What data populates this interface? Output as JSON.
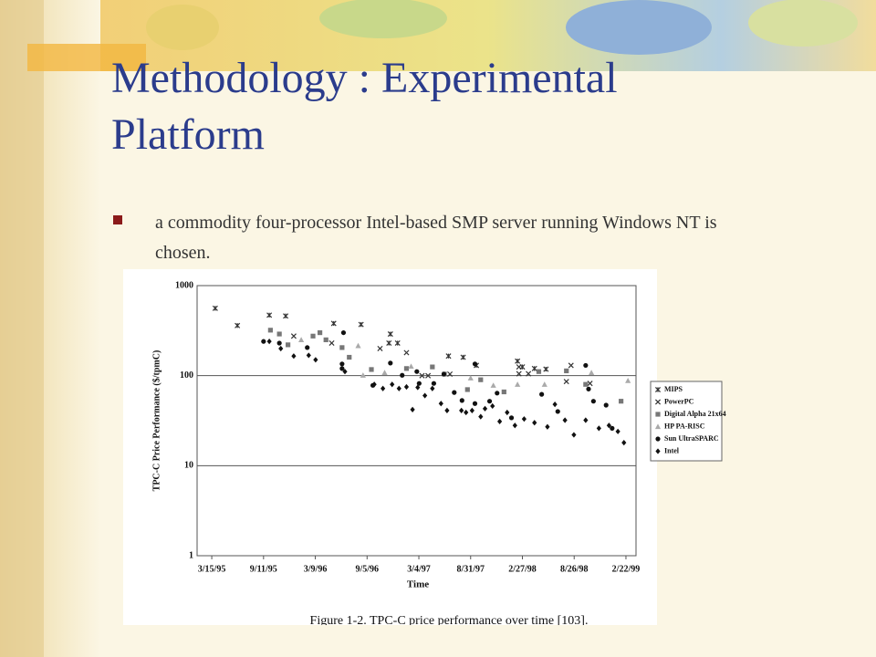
{
  "slide": {
    "title": "Methodology : Experimental Platform",
    "bullet": "a commodity four-processor Intel-based SMP server running Windows NT is chosen."
  },
  "chart_data": {
    "type": "scatter",
    "xlabel": "Time",
    "ylabel": "TPC-C Price Performance ($/tpmC)",
    "caption": "Figure 1-2. TPC-C price performance over time [103].",
    "xlim": [
      "1995-01-23",
      "1999-03-29"
    ],
    "xticks": [
      {
        "value": "1995-03-15",
        "label": "3/15/95"
      },
      {
        "value": "1995-09-11",
        "label": "9/11/95"
      },
      {
        "value": "1996-03-09",
        "label": "3/9/96"
      },
      {
        "value": "1996-09-05",
        "label": "9/5/96"
      },
      {
        "value": "1997-03-04",
        "label": "3/4/97"
      },
      {
        "value": "1997-08-31",
        "label": "8/31/97"
      },
      {
        "value": "1998-02-27",
        "label": "2/27/98"
      },
      {
        "value": "1998-08-26",
        "label": "8/26/98"
      },
      {
        "value": "1999-02-22",
        "label": "2/22/99"
      }
    ],
    "ylim": [
      1,
      1000
    ],
    "yticks": [
      1,
      10,
      100,
      1000
    ],
    "ylog": true,
    "grid": true,
    "legend": "right",
    "series": [
      {
        "name": "MIPS",
        "color": "#333333",
        "marker": "asterisk",
        "x": [
          "1995-03-27",
          "1995-06-12",
          "1995-10-01",
          "1995-11-27",
          "1996-05-12",
          "1996-08-15",
          "1996-11-25",
          "1996-12-20",
          "1996-11-20",
          "1997-06-15",
          "1997-08-05",
          "1997-09-20",
          "1998-02-10",
          "1998-02-27",
          "1998-04-10",
          "1998-05-20"
        ],
        "values": [
          560,
          360,
          470,
          460,
          380,
          370,
          290,
          230,
          230,
          165,
          160,
          130,
          145,
          125,
          120,
          118
        ]
      },
      {
        "name": "PowerPC",
        "color": "#333333",
        "marker": "x",
        "x": [
          "1995-12-25",
          "1996-05-05",
          "1996-10-20",
          "1997-01-20",
          "1997-03-15",
          "1997-04-05",
          "1997-06-20",
          "1998-02-15",
          "1998-02-15",
          "1998-03-20",
          "1998-07-30",
          "1998-08-15",
          "1998-10-20"
        ],
        "values": [
          275,
          230,
          200,
          180,
          100,
          100,
          104,
          125,
          105,
          105,
          86,
          130,
          82
        ]
      },
      {
        "name": "Digital Alpha 21x64",
        "color": "#777777",
        "marker": "square",
        "x": [
          "1995-10-05",
          "1995-11-05",
          "1995-12-05",
          "1996-03-01",
          "1996-03-25",
          "1996-04-15",
          "1996-06-10",
          "1996-07-05",
          "1996-09-20",
          "1997-01-20",
          "1997-04-20",
          "1997-06-01",
          "1997-08-20",
          "1997-10-05",
          "1997-12-25",
          "1998-04-25",
          "1998-07-30",
          "1998-10-05",
          "1999-02-05"
        ],
        "values": [
          320,
          290,
          220,
          275,
          300,
          250,
          205,
          160,
          117,
          120,
          125,
          104,
          70,
          90,
          66,
          111,
          113,
          80,
          52
        ]
      },
      {
        "name": "HP PA-RISC",
        "color": "#aaaaaa",
        "marker": "triangle",
        "x": [
          "1996-01-20",
          "1996-08-05",
          "1996-08-22",
          "1996-11-05",
          "1997-02-05",
          "1997-08-31",
          "1997-11-18",
          "1998-02-10",
          "1998-05-15",
          "1998-10-25",
          "1999-03-01"
        ],
        "values": [
          250,
          215,
          101,
          108,
          127,
          94,
          78,
          80,
          80,
          108,
          88
        ]
      },
      {
        "name": "Sun UltraSPARC",
        "color": "#111111",
        "marker": "circle",
        "x": [
          "1995-09-11",
          "1995-11-05",
          "1996-02-10",
          "1996-06-15",
          "1996-06-10",
          "1996-06-10",
          "1996-09-25",
          "1996-11-25",
          "1997-01-05",
          "1997-02-25",
          "1997-03-05",
          "1997-04-25",
          "1997-05-30",
          "1997-07-05",
          "1997-08-01",
          "1997-09-15",
          "1997-09-15",
          "1997-11-05",
          "1997-12-01",
          "1998-01-20",
          "1998-05-05",
          "1998-06-30",
          "1998-10-05",
          "1998-10-15",
          "1998-11-01",
          "1998-12-15",
          "1999-01-05"
        ],
        "values": [
          240,
          230,
          205,
          300,
          135,
          120,
          78,
          138,
          101,
          111,
          82,
          82,
          104,
          65,
          53,
          135,
          49,
          52,
          64,
          34,
          62,
          40,
          130,
          71,
          52,
          47,
          26
        ]
      },
      {
        "name": "Intel",
        "color": "#111111",
        "marker": "diamond",
        "x": [
          "1995-10-01",
          "1995-11-10",
          "1995-12-25",
          "1996-02-15",
          "1996-03-10",
          "1996-06-20",
          "1996-09-30",
          "1996-10-30",
          "1996-12-01",
          "1996-12-25",
          "1997-01-20",
          "1997-02-10",
          "1997-02-28",
          "1997-03-25",
          "1997-04-20",
          "1997-05-20",
          "1997-06-10",
          "1997-07-30",
          "1997-08-15",
          "1997-09-05",
          "1997-10-05",
          "1997-10-20",
          "1997-11-15",
          "1997-12-10",
          "1998-01-05",
          "1998-02-01",
          "1998-03-05",
          "1998-04-10",
          "1998-05-25",
          "1998-06-20",
          "1998-07-25",
          "1998-08-25",
          "1998-10-05",
          "1998-11-20",
          "1998-12-25",
          "1999-01-25",
          "1999-02-15"
        ],
        "values": [
          240,
          200,
          165,
          168,
          150,
          111,
          80,
          72,
          80,
          72,
          75,
          42,
          74,
          60,
          72,
          49,
          41,
          41,
          39,
          41,
          35,
          43,
          46,
          31,
          39,
          28,
          33,
          30,
          27,
          48,
          32,
          22,
          32,
          26,
          28,
          24,
          18
        ]
      }
    ]
  }
}
